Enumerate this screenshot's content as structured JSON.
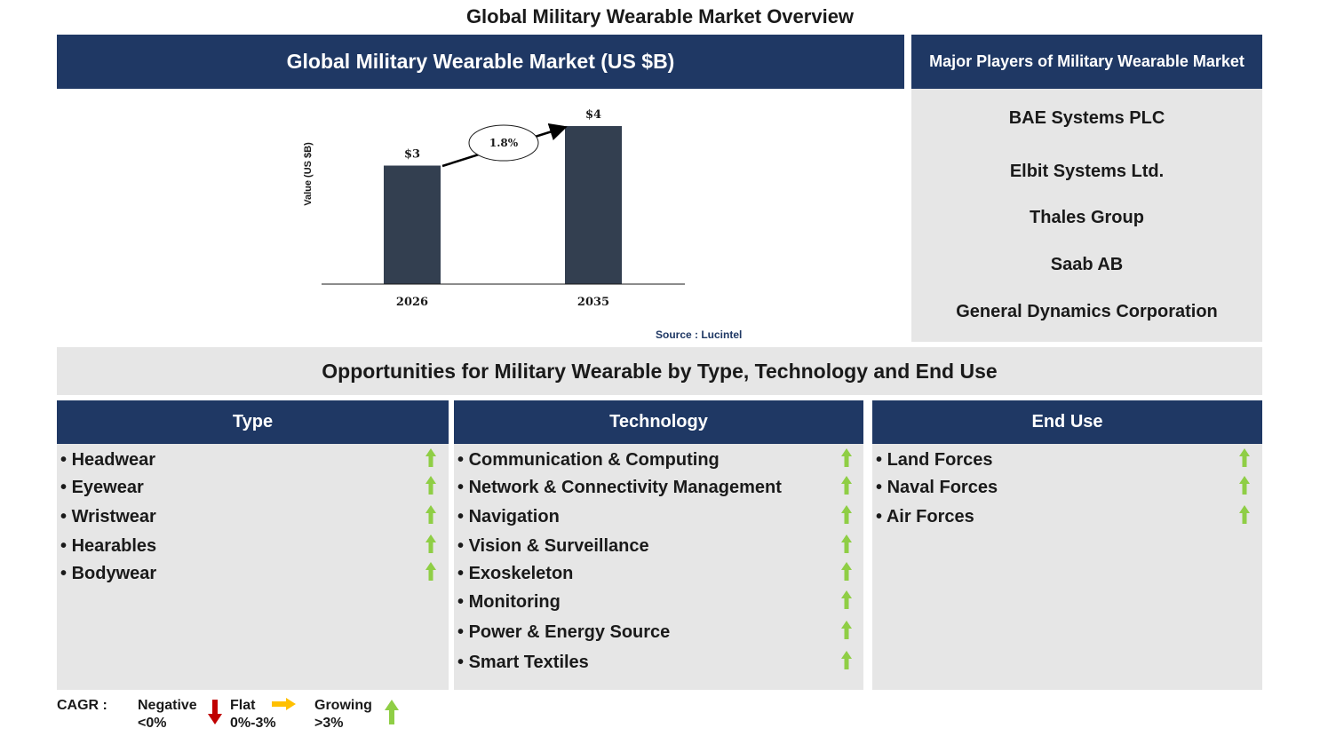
{
  "page_title": "Global Military Wearable Market Overview",
  "chart_header": "Global Military Wearable Market (US $B)",
  "source": "Source : Lucintel",
  "chart_data": {
    "type": "bar",
    "categories": [
      "2026",
      "2035"
    ],
    "values": [
      3,
      4
    ],
    "data_labels": [
      "$3",
      "$4"
    ],
    "ylabel": "Value (US $B)",
    "annotation": "1.8%",
    "bar_color": "#333f50"
  },
  "players": {
    "title": "Major Players of Military Wearable Market",
    "items": [
      "BAE Systems PLC",
      "Elbit Systems Ltd.",
      "Thales Group",
      "Saab AB",
      "General Dynamics Corporation"
    ]
  },
  "opportunities_title": "Opportunities for Military Wearable by Type, Technology and End Use",
  "segments": [
    {
      "title": "Type",
      "items": [
        "Headwear",
        "Eyewear",
        "Wristwear",
        "Hearables",
        "Bodywear"
      ]
    },
    {
      "title": "Technology",
      "items": [
        "Communication & Computing",
        "Network & Connectivity Management",
        "Navigation",
        "Vision & Surveillance",
        "Exoskeleton",
        "Monitoring",
        "Power & Energy Source",
        "Smart Textiles"
      ]
    },
    {
      "title": "End Use",
      "items": [
        "Land Forces",
        "Naval Forces",
        "Air Forces"
      ]
    }
  ],
  "legend": {
    "label": "CAGR :",
    "negative": {
      "name": "Negative",
      "range": "<0%"
    },
    "flat": {
      "name": "Flat",
      "range": "0%-3%"
    },
    "growing": {
      "name": "Growing",
      "range": ">3%"
    }
  },
  "colors": {
    "navy": "#1f3864",
    "grey": "#e6e6e6",
    "up_arrow": "#8fce45",
    "down_arrow": "#c00000",
    "flat_arrow": "#ffc000"
  }
}
